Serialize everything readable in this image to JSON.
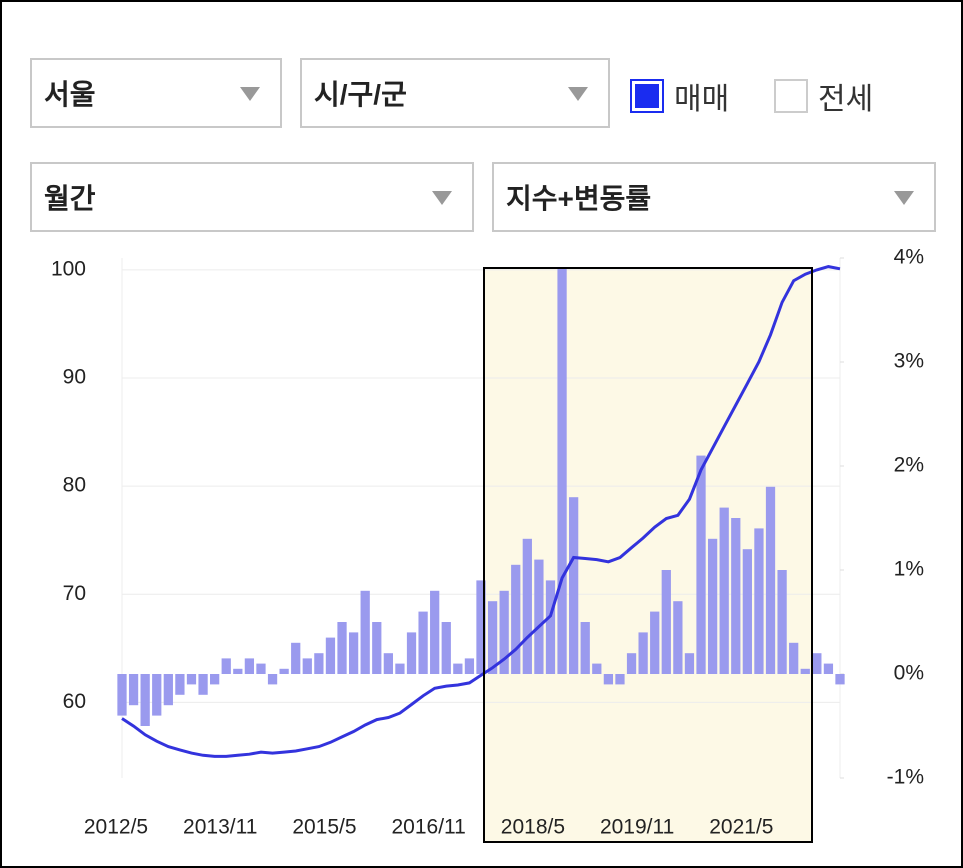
{
  "controls": {
    "region": "서울",
    "district": "시/구/군",
    "sale": {
      "label": "매매",
      "checked": true
    },
    "jeonse": {
      "label": "전세",
      "checked": false
    },
    "period": "월간",
    "mode": "지수+변동률"
  },
  "chart_data": {
    "type": "bar-line",
    "categories": [
      "2012/5",
      null,
      null,
      null,
      null,
      null,
      null,
      null,
      null,
      "2013/11",
      null,
      null,
      null,
      null,
      null,
      null,
      null,
      null,
      "2015/5",
      null,
      null,
      null,
      null,
      null,
      null,
      null,
      null,
      "2016/11",
      null,
      null,
      null,
      null,
      null,
      null,
      null,
      null,
      "2018/5",
      null,
      null,
      null,
      null,
      null,
      null,
      null,
      null,
      "2019/11",
      null,
      null,
      null,
      null,
      null,
      null,
      null,
      null,
      "2021/5",
      null,
      null,
      null,
      null,
      null,
      null,
      null,
      null
    ],
    "series": [
      {
        "type": "line",
        "color": "#3333dd",
        "axis": "y",
        "values": [
          58.5,
          57.8,
          57.0,
          56.4,
          55.9,
          55.6,
          55.3,
          55.1,
          55.0,
          55.0,
          55.1,
          55.2,
          55.4,
          55.3,
          55.4,
          55.5,
          55.7,
          55.9,
          56.3,
          56.8,
          57.3,
          57.9,
          58.4,
          58.6,
          59.0,
          59.8,
          60.6,
          61.3,
          61.5,
          61.6,
          61.8,
          62.5,
          63.2,
          64.0,
          64.9,
          66.0,
          67.0,
          68.0,
          71.5,
          73.4,
          73.3,
          73.2,
          73.0,
          73.4,
          74.3,
          75.2,
          76.2,
          77.0,
          77.3,
          78.8,
          81.5,
          83.5,
          85.5,
          87.5,
          89.5,
          91.5,
          94.0,
          97.0,
          99.0,
          99.6,
          100.0,
          100.3,
          100.1
        ]
      },
      {
        "type": "bar",
        "color": "#9a9aee",
        "axis": "y2",
        "values": [
          -0.4,
          -0.3,
          -0.5,
          -0.4,
          -0.3,
          -0.2,
          -0.1,
          -0.2,
          -0.1,
          0.15,
          0.05,
          0.15,
          0.1,
          -0.1,
          0.05,
          0.3,
          0.15,
          0.2,
          0.35,
          0.5,
          0.4,
          0.8,
          0.5,
          0.2,
          0.1,
          0.4,
          0.6,
          0.8,
          0.5,
          0.1,
          0.15,
          0.9,
          0.7,
          0.8,
          1.05,
          1.3,
          1.1,
          0.9,
          3.9,
          1.7,
          0.5,
          0.1,
          -0.1,
          -0.1,
          0.2,
          0.4,
          0.6,
          1.0,
          0.7,
          0.2,
          2.1,
          1.3,
          1.6,
          1.5,
          1.2,
          1.4,
          1.8,
          1.0,
          0.3,
          0.05,
          0.2,
          0.1,
          -0.1
        ]
      }
    ],
    "ylim": [
      53,
      101.1
    ],
    "yticks": [
      60,
      70,
      80,
      90,
      100
    ],
    "y2lim": [
      -1,
      4
    ],
    "y2ticks": [
      {
        "value": -1,
        "label": "-1%"
      },
      {
        "value": 0,
        "label": "0%"
      },
      {
        "value": 1,
        "label": "1%"
      },
      {
        "value": 2,
        "label": "2%"
      },
      {
        "value": 3,
        "label": "3%"
      },
      {
        "value": 4,
        "label": "4%"
      }
    ],
    "grid": true
  }
}
